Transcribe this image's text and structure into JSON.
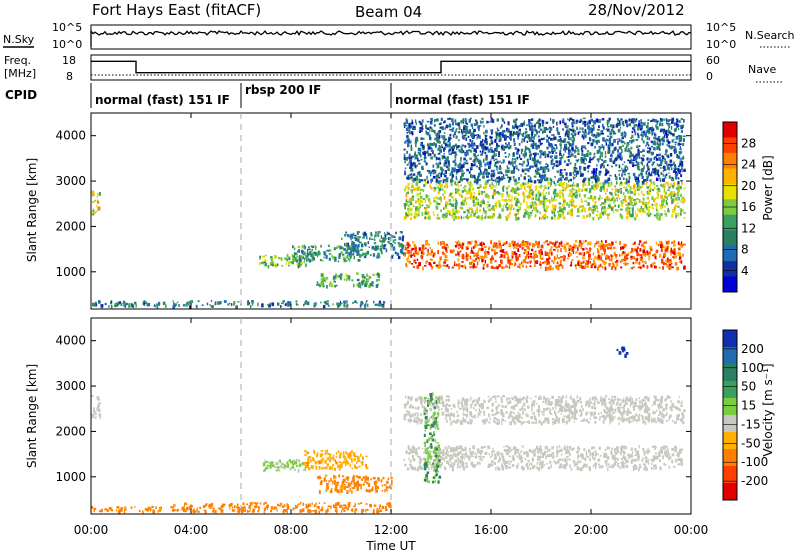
{
  "header": {
    "station": "Fort Hays East (fitACF)",
    "beam": "Beam 04",
    "date": "28/Nov/2012"
  },
  "noise_panel": {
    "left_label": "N.Sky",
    "right_label": "N.Search",
    "left_ticks": [
      "10^5",
      "10^0"
    ],
    "right_ticks": [
      "10^5",
      "10^0"
    ]
  },
  "freq_panel": {
    "left_label_line1": "Freq.",
    "left_label_line2": "[MHz]",
    "left_ticks": [
      "18",
      "8"
    ],
    "right_label": "Nave",
    "right_ticks": [
      "60",
      "0"
    ],
    "freq_segments": [
      {
        "start_h": 0.0,
        "end_h": 1.8,
        "mhz": 15
      },
      {
        "start_h": 1.8,
        "end_h": 14.0,
        "mhz": 9.5
      },
      {
        "start_h": 14.0,
        "end_h": 24.0,
        "mhz": 15
      }
    ],
    "nave_level": 12
  },
  "cpid_panel": {
    "label": "CPID",
    "segments": [
      {
        "start_h": 0.0,
        "end_h": 6.0,
        "text": "normal (fast) 151 IF"
      },
      {
        "start_h": 6.0,
        "end_h": 12.0,
        "text": "rbsp 200 IF"
      },
      {
        "start_h": 12.0,
        "end_h": 24.0,
        "text": "normal (fast) 151 IF"
      }
    ]
  },
  "chart_data": [
    {
      "type": "heatmap",
      "name": "power",
      "ylabel": "Slant Range [km]",
      "ylim": [
        180,
        4500
      ],
      "yticks": [
        "1000",
        "2000",
        "3000",
        "4000"
      ],
      "xlim_hours": [
        0,
        24
      ],
      "colorbar": {
        "label": "Power [dB]",
        "ticks": [
          "28",
          "24",
          "20",
          "16",
          "12",
          "8",
          "4"
        ],
        "colors": [
          "#e00000",
          "#ff4000",
          "#ff8000",
          "#ffb000",
          "#e8e000",
          "#7ccc40",
          "#3aa060",
          "#2a8060",
          "#206cb0",
          "#1030a0",
          "#0000d8"
        ]
      },
      "echo_regions": [
        {
          "t0": 0.0,
          "t1": 0.35,
          "r0": 2300,
          "r1": 2800,
          "level": 18
        },
        {
          "t0": 0.0,
          "t1": 12.0,
          "r0": 260,
          "r1": 380,
          "level": 8
        },
        {
          "t0": 6.7,
          "t1": 8.6,
          "r0": 1150,
          "r1": 1400,
          "level": 14
        },
        {
          "t0": 8.0,
          "t1": 10.8,
          "r0": 1250,
          "r1": 1600,
          "level": 10
        },
        {
          "t0": 9.0,
          "t1": 11.5,
          "r0": 700,
          "r1": 1000,
          "level": 12
        },
        {
          "t0": 10.0,
          "t1": 12.5,
          "r0": 1350,
          "r1": 1900,
          "level": 8
        },
        {
          "t0": 12.5,
          "t1": 23.7,
          "r0": 1100,
          "r1": 1700,
          "level": 26
        },
        {
          "t0": 12.5,
          "t1": 23.7,
          "r0": 2200,
          "r1": 3000,
          "level": 16
        },
        {
          "t0": 12.5,
          "t1": 23.7,
          "r0": 3000,
          "r1": 4400,
          "level": 6
        }
      ]
    },
    {
      "type": "heatmap",
      "name": "velocity",
      "ylabel": "Slant Range [km]",
      "ylim": [
        180,
        4500
      ],
      "yticks": [
        "1000",
        "2000",
        "3000",
        "4000"
      ],
      "xlabel": "Time UT",
      "xticks": [
        "00:00",
        "04:00",
        "08:00",
        "12:00",
        "16:00",
        "20:00",
        "00:00"
      ],
      "xlim_hours": [
        0,
        24
      ],
      "colorbar": {
        "label": "Velocity [m s⁻¹]",
        "ticks": [
          "200",
          "100",
          "50",
          "15",
          "-15",
          "-50",
          "-100",
          "-200"
        ],
        "colors": [
          "#1030b0",
          "#206cb0",
          "#2a8060",
          "#3aa060",
          "#7ccc40",
          "#c8c8c0",
          "#ffb000",
          "#ff8000",
          "#ff4000",
          "#e00000"
        ]
      },
      "echo_regions": [
        {
          "t0": 0.0,
          "t1": 0.35,
          "r0": 2300,
          "r1": 2800,
          "velocity": 0
        },
        {
          "t0": 0.0,
          "t1": 3.0,
          "r0": 260,
          "r1": 360,
          "velocity": -60
        },
        {
          "t0": 3.0,
          "t1": 12.0,
          "r0": 250,
          "r1": 450,
          "velocity": -80
        },
        {
          "t0": 6.7,
          "t1": 8.6,
          "r0": 1150,
          "r1": 1400,
          "velocity": 20
        },
        {
          "t0": 8.5,
          "t1": 11.0,
          "r0": 1200,
          "r1": 1600,
          "velocity": -40
        },
        {
          "t0": 9.0,
          "t1": 12.0,
          "r0": 700,
          "r1": 1050,
          "velocity": -60
        },
        {
          "t0": 12.5,
          "t1": 23.7,
          "r0": 1200,
          "r1": 1700,
          "velocity": 0
        },
        {
          "t0": 12.5,
          "t1": 23.7,
          "r0": 2200,
          "r1": 2800,
          "velocity": 0
        },
        {
          "t0": 13.3,
          "t1": 13.9,
          "r0": 900,
          "r1": 2900,
          "velocity": 30
        },
        {
          "t0": 21.0,
          "t1": 21.4,
          "r0": 3700,
          "r1": 3900,
          "velocity": 220
        }
      ]
    }
  ]
}
